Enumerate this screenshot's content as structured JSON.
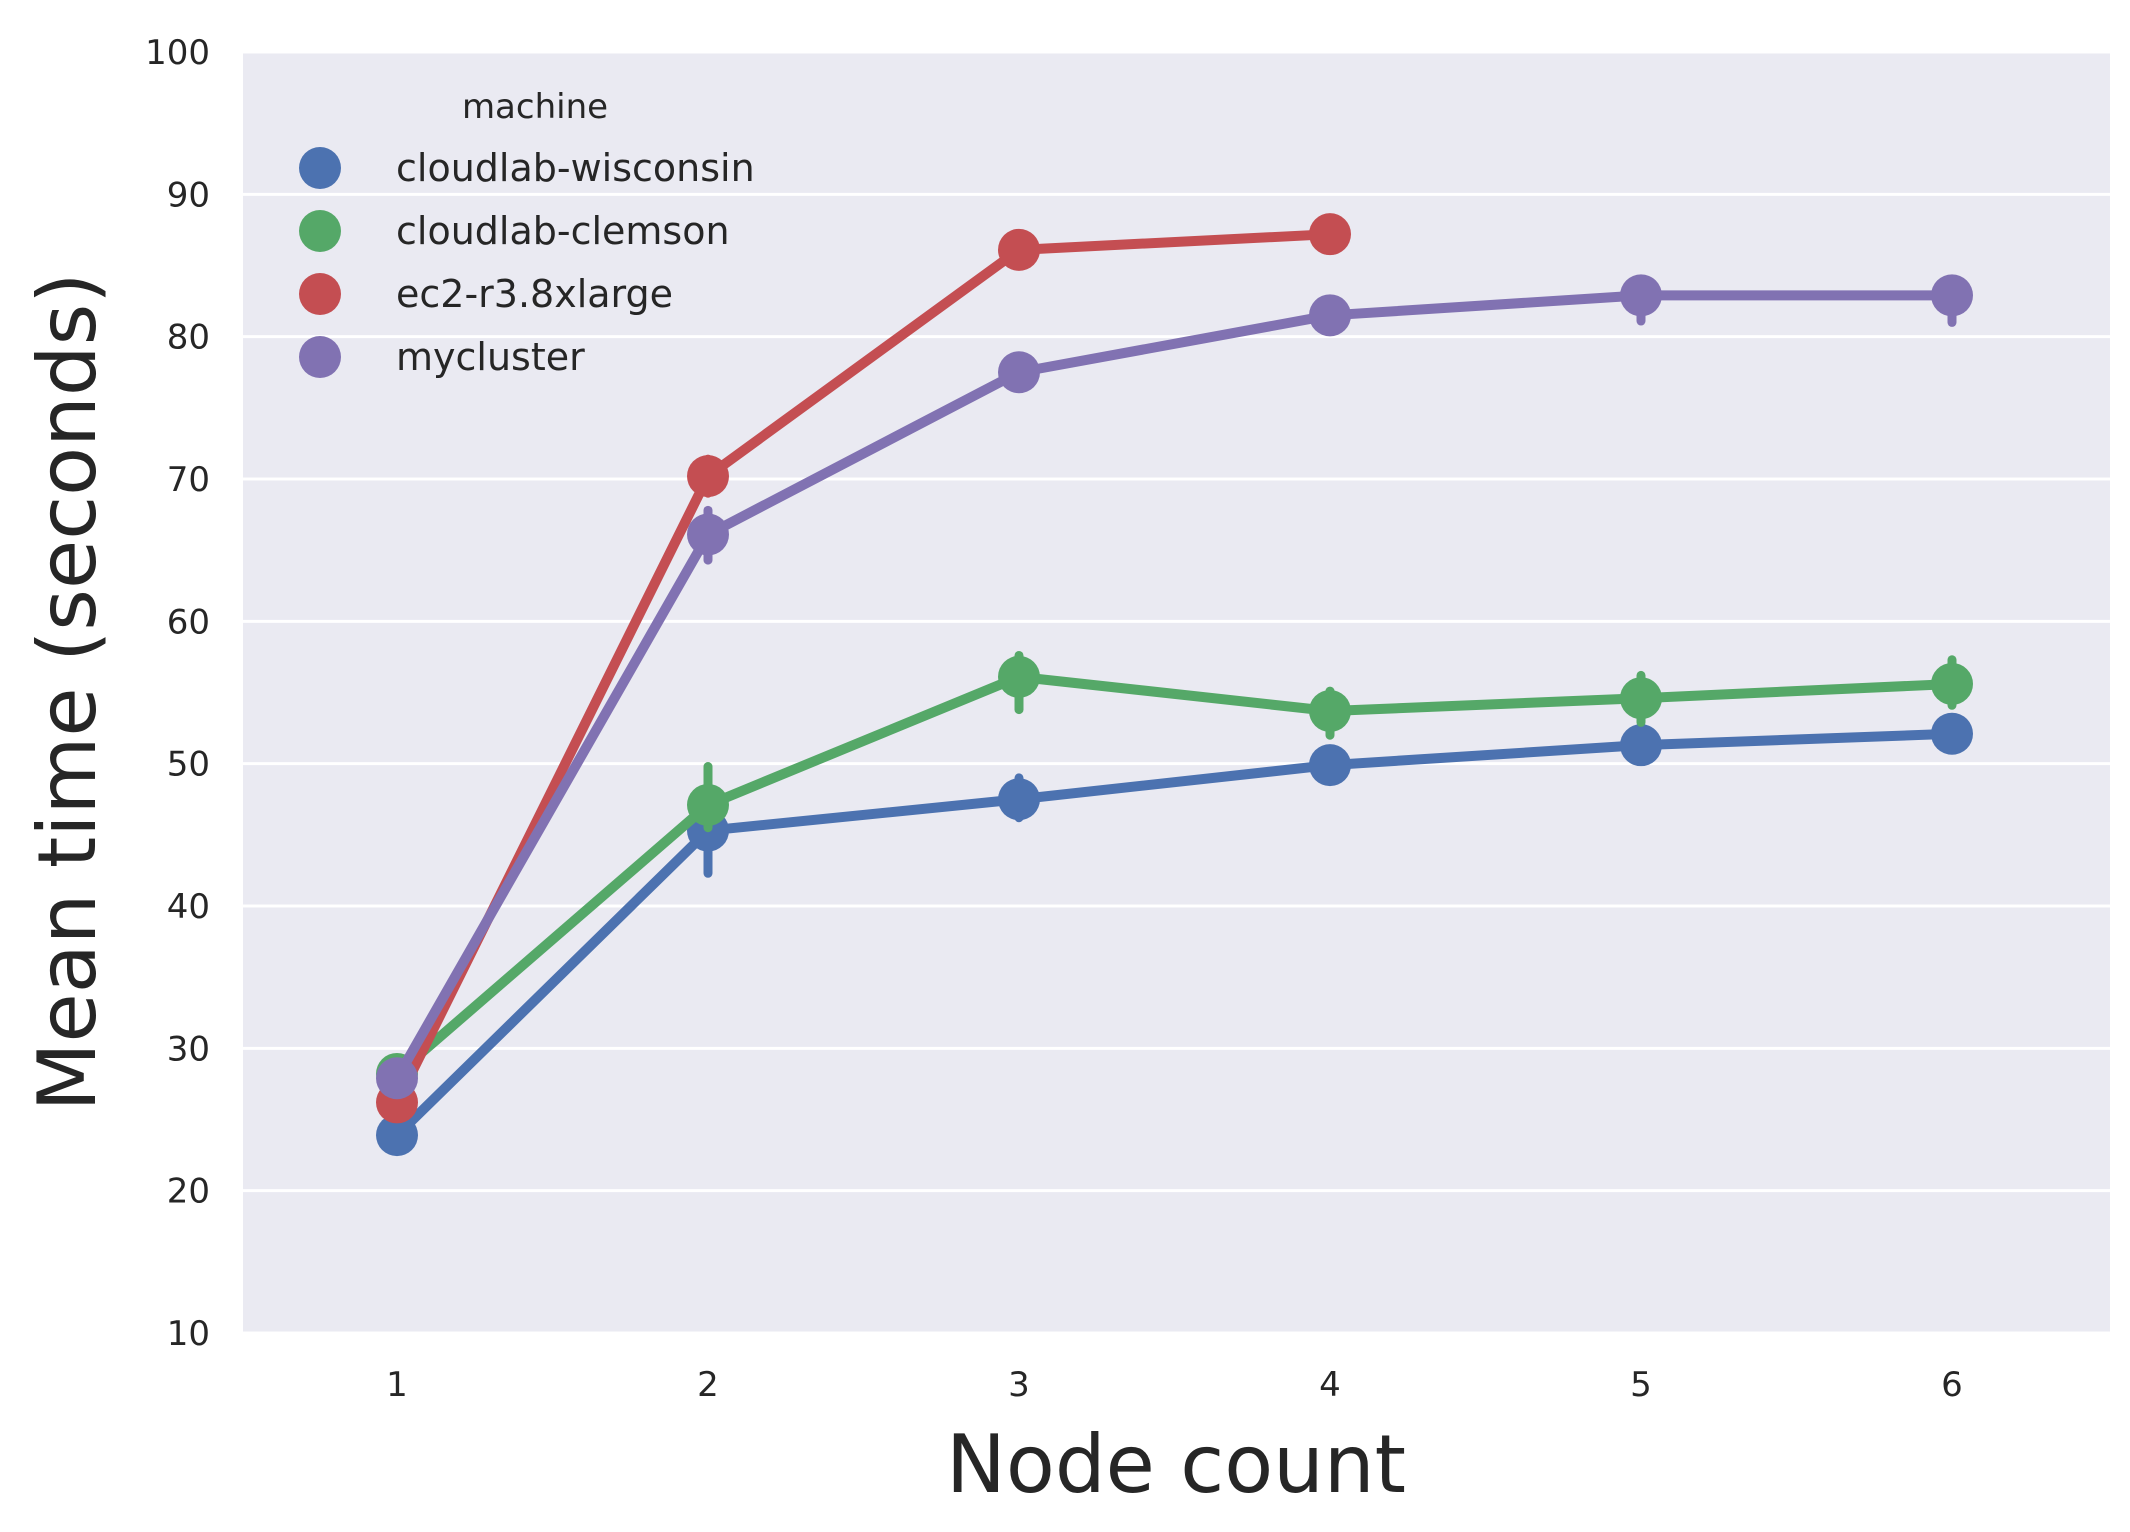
{
  "chart_data": {
    "type": "line",
    "title": "",
    "xlabel": "Node count",
    "ylabel": "Mean time (seconds)",
    "categories": [
      "1",
      "2",
      "3",
      "4",
      "5",
      "6"
    ],
    "ylim": [
      10,
      100
    ],
    "yticks": [
      "10",
      "20",
      "30",
      "40",
      "50",
      "60",
      "70",
      "80",
      "90",
      "100"
    ],
    "grid": true,
    "legend": {
      "title": "machine",
      "position": "top-left"
    },
    "series": [
      {
        "name": "cloudlab-wisconsin",
        "color": "#4c72b0",
        "values": [
          23.9,
          45.3,
          47.5,
          49.9,
          51.3,
          52.1
        ],
        "err_low": [
          23.9,
          42.3,
          46.2,
          49.3,
          50.8,
          51.6
        ],
        "err_high": [
          23.9,
          48.0,
          49.0,
          50.5,
          51.8,
          52.6
        ]
      },
      {
        "name": "cloudlab-clemson",
        "color": "#55a868",
        "values": [
          28.2,
          47.1,
          56.1,
          53.7,
          54.6,
          55.6
        ],
        "err_low": [
          28.2,
          45.5,
          53.8,
          52.0,
          52.9,
          54.1
        ],
        "err_high": [
          28.2,
          49.8,
          57.6,
          55.1,
          56.2,
          57.3
        ]
      },
      {
        "name": "ec2-r3.8xlarge",
        "color": "#c44e52",
        "values": [
          26.2,
          70.2,
          86.1,
          87.2,
          null,
          null
        ],
        "err_low": [
          26.2,
          69.0,
          85.5,
          87.2,
          null,
          null
        ],
        "err_high": [
          26.2,
          71.4,
          86.9,
          87.2,
          null,
          null
        ]
      },
      {
        "name": "mycluster",
        "color": "#8172b2",
        "values": [
          27.9,
          66.1,
          77.5,
          81.5,
          82.9,
          82.9
        ],
        "err_low": [
          27.9,
          64.3,
          77.5,
          81.5,
          81.1,
          81.0
        ],
        "err_high": [
          27.9,
          67.8,
          77.5,
          81.5,
          82.9,
          82.9
        ]
      }
    ]
  }
}
